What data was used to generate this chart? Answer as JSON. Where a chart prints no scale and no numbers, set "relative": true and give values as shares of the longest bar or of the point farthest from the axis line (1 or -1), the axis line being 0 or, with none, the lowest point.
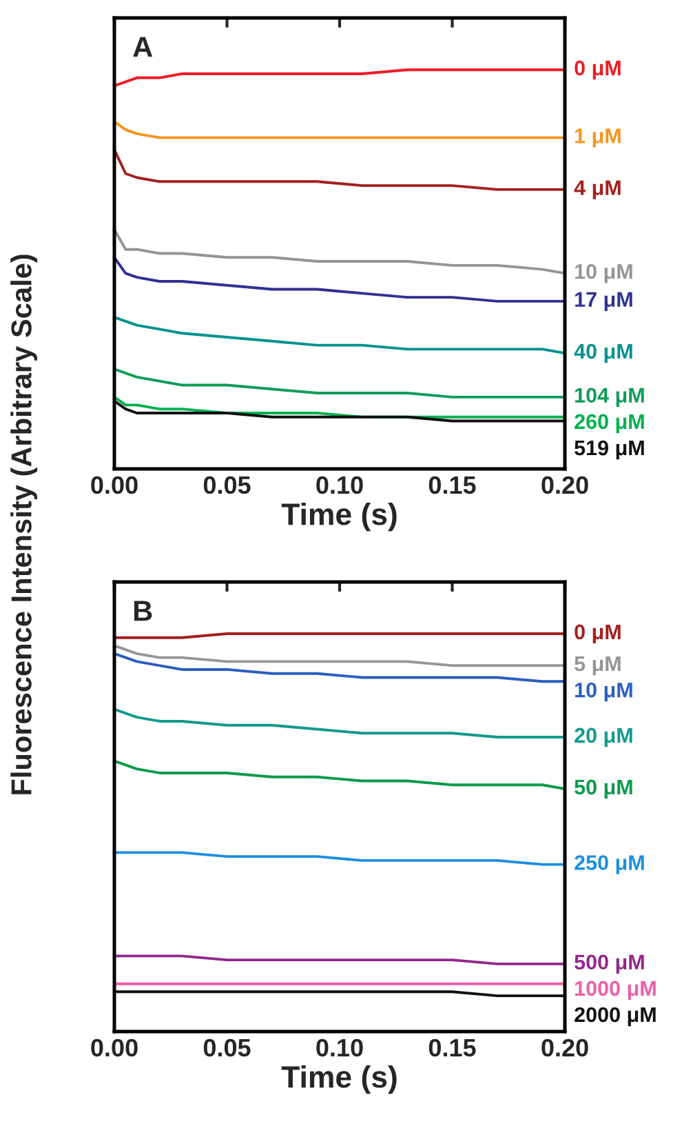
{
  "chart_data": [
    {
      "type": "line",
      "relative": true,
      "annotations": [
        "A"
      ],
      "xlabel": "Time (s)",
      "ylabel": "Fluorescence Intensity (Arbitrary Scale)",
      "x": [
        0,
        0.005,
        0.01,
        0.02,
        0.03,
        0.05,
        0.07,
        0.09,
        0.11,
        0.13,
        0.15,
        0.17,
        0.19,
        0.2
      ],
      "xlim": [
        0,
        0.2
      ],
      "xticks": [
        {
          "value": 0,
          "label": "0.00"
        },
        {
          "value": 0.05,
          "label": "0.05"
        },
        {
          "value": 0.1,
          "label": "0.10"
        },
        {
          "value": 0.15,
          "label": "0.15"
        },
        {
          "value": 0.2,
          "label": "0.20"
        }
      ],
      "grid": false,
      "legend": false,
      "line_style": "solid",
      "marker": "none",
      "series": [
        {
          "name": "0 μM",
          "color": "#ee1c25",
          "values": [
            0.96,
            0.97,
            0.98,
            0.98,
            0.99,
            0.99,
            0.99,
            0.99,
            0.99,
            1.0,
            1.0,
            1.0,
            1.0,
            1.0
          ]
        },
        {
          "name": "1 μM",
          "color": "#f7941d",
          "values": [
            0.87,
            0.85,
            0.84,
            0.83,
            0.83,
            0.83,
            0.83,
            0.83,
            0.83,
            0.83,
            0.83,
            0.83,
            0.83,
            0.83
          ]
        },
        {
          "name": "4 μM",
          "color": "#a3201f",
          "values": [
            0.8,
            0.74,
            0.73,
            0.72,
            0.72,
            0.72,
            0.72,
            0.72,
            0.71,
            0.71,
            0.71,
            0.7,
            0.7,
            0.7
          ]
        },
        {
          "name": "10 μM",
          "color": "#939598",
          "values": [
            0.6,
            0.55,
            0.55,
            0.54,
            0.54,
            0.53,
            0.53,
            0.52,
            0.52,
            0.52,
            0.51,
            0.51,
            0.5,
            0.49
          ]
        },
        {
          "name": "17 μM",
          "color": "#2e3192",
          "values": [
            0.53,
            0.49,
            0.48,
            0.47,
            0.47,
            0.46,
            0.45,
            0.45,
            0.44,
            0.43,
            0.43,
            0.42,
            0.42,
            0.42
          ]
        },
        {
          "name": "40 μM",
          "color": "#00928f",
          "values": [
            0.38,
            0.37,
            0.36,
            0.35,
            0.34,
            0.33,
            0.32,
            0.31,
            0.31,
            0.3,
            0.3,
            0.3,
            0.3,
            0.29
          ]
        },
        {
          "name": "104 μM",
          "color": "#0f9d58",
          "values": [
            0.25,
            0.24,
            0.23,
            0.22,
            0.21,
            0.21,
            0.2,
            0.19,
            0.19,
            0.19,
            0.18,
            0.18,
            0.18,
            0.18
          ]
        },
        {
          "name": "260 μM",
          "color": "#00b050",
          "values": [
            0.18,
            0.16,
            0.16,
            0.15,
            0.15,
            0.14,
            0.14,
            0.14,
            0.13,
            0.13,
            0.13,
            0.13,
            0.13,
            0.13
          ]
        },
        {
          "name": "519 μM",
          "color": "#111111",
          "values": [
            0.17,
            0.15,
            0.14,
            0.14,
            0.14,
            0.14,
            0.13,
            0.13,
            0.13,
            0.13,
            0.12,
            0.12,
            0.12,
            0.12
          ]
        }
      ]
    },
    {
      "type": "line",
      "relative": true,
      "annotations": [
        "B"
      ],
      "xlabel": "Time (s)",
      "x": [
        0,
        0.005,
        0.01,
        0.02,
        0.03,
        0.05,
        0.07,
        0.09,
        0.11,
        0.13,
        0.15,
        0.17,
        0.19,
        0.2
      ],
      "xlim": [
        0,
        0.2
      ],
      "xticks": [
        {
          "value": 0,
          "label": "0.00"
        },
        {
          "value": 0.05,
          "label": "0.05"
        },
        {
          "value": 0.1,
          "label": "0.10"
        },
        {
          "value": 0.15,
          "label": "0.15"
        },
        {
          "value": 0.2,
          "label": "0.20"
        }
      ],
      "grid": false,
      "legend": false,
      "line_style": "solid",
      "marker": "none",
      "series": [
        {
          "name": "0 μM",
          "color": "#a3201f",
          "values": [
            0.99,
            0.99,
            0.99,
            0.99,
            0.99,
            1.0,
            1.0,
            1.0,
            1.0,
            1.0,
            1.0,
            1.0,
            1.0,
            1.0
          ]
        },
        {
          "name": "5 μM",
          "color": "#939598",
          "values": [
            0.97,
            0.96,
            0.95,
            0.94,
            0.94,
            0.93,
            0.93,
            0.93,
            0.93,
            0.93,
            0.92,
            0.92,
            0.92,
            0.92
          ]
        },
        {
          "name": "10 μM",
          "color": "#2b5fbf",
          "values": [
            0.95,
            0.94,
            0.93,
            0.92,
            0.91,
            0.91,
            0.9,
            0.9,
            0.89,
            0.89,
            0.89,
            0.89,
            0.88,
            0.88
          ]
        },
        {
          "name": "20 μM",
          "color": "#139a8e",
          "values": [
            0.81,
            0.8,
            0.79,
            0.78,
            0.78,
            0.77,
            0.77,
            0.76,
            0.75,
            0.75,
            0.75,
            0.74,
            0.74,
            0.74
          ]
        },
        {
          "name": "50 μM",
          "color": "#0b9a4a",
          "values": [
            0.68,
            0.67,
            0.66,
            0.65,
            0.65,
            0.65,
            0.64,
            0.64,
            0.63,
            0.63,
            0.62,
            0.62,
            0.62,
            0.61
          ]
        },
        {
          "name": "250 μM",
          "color": "#1c8edf",
          "values": [
            0.45,
            0.45,
            0.45,
            0.45,
            0.45,
            0.44,
            0.44,
            0.44,
            0.43,
            0.43,
            0.43,
            0.43,
            0.42,
            0.42
          ]
        },
        {
          "name": "500 μM",
          "color": "#92278f",
          "values": [
            0.19,
            0.19,
            0.19,
            0.19,
            0.19,
            0.18,
            0.18,
            0.18,
            0.18,
            0.18,
            0.18,
            0.17,
            0.17,
            0.17
          ]
        },
        {
          "name": "1000 μM",
          "color": "#ec5fa7",
          "values": [
            0.12,
            0.12,
            0.12,
            0.12,
            0.12,
            0.12,
            0.12,
            0.12,
            0.12,
            0.12,
            0.12,
            0.12,
            0.12,
            0.12
          ]
        },
        {
          "name": "2000 μM",
          "color": "#111111",
          "values": [
            0.1,
            0.1,
            0.1,
            0.1,
            0.1,
            0.1,
            0.1,
            0.1,
            0.1,
            0.1,
            0.1,
            0.09,
            0.09,
            0.09
          ]
        }
      ]
    }
  ]
}
